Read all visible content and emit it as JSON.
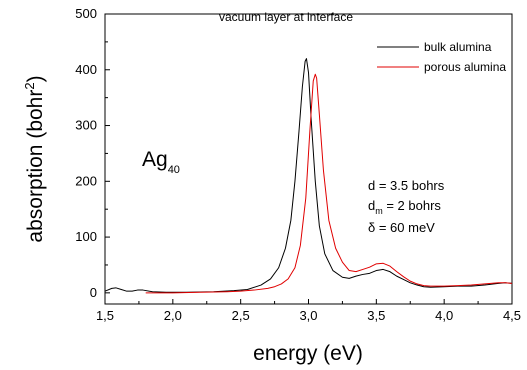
{
  "chart_data": {
    "type": "line",
    "title": "vacuum layer at interface",
    "xlabel": "energy (eV)",
    "ylabel_main": "absorption (bohr",
    "ylabel_sup": "2",
    "ylabel_close": ")",
    "xlim": [
      1.5,
      4.5
    ],
    "ylim": [
      -20,
      500
    ],
    "xticks": [
      1.5,
      2.0,
      2.5,
      3.0,
      3.5,
      4.0,
      4.5
    ],
    "xtick_labels": [
      "1,5",
      "2,0",
      "2,5",
      "3,0",
      "3,5",
      "4,0",
      "4,5"
    ],
    "yticks": [
      0,
      100,
      200,
      300,
      400,
      500
    ],
    "ytick_labels": [
      "0",
      "100",
      "200",
      "300",
      "400",
      "500"
    ],
    "grid": false,
    "legend_position": "top-right",
    "series": [
      {
        "name": "bulk alumina",
        "color": "#000000",
        "x": [
          1.5,
          1.55,
          1.58,
          1.62,
          1.66,
          1.7,
          1.74,
          1.78,
          1.85,
          1.95,
          2.1,
          2.3,
          2.45,
          2.55,
          2.65,
          2.72,
          2.78,
          2.83,
          2.87,
          2.9,
          2.93,
          2.955,
          2.975,
          2.985,
          3.0,
          3.02,
          3.05,
          3.08,
          3.12,
          3.18,
          3.25,
          3.3,
          3.35,
          3.4,
          3.45,
          3.5,
          3.55,
          3.6,
          3.65,
          3.7,
          3.75,
          3.8,
          3.85,
          3.9,
          4.0,
          4.1,
          4.2,
          4.3,
          4.4,
          4.45,
          4.5
        ],
        "y": [
          3,
          8,
          9,
          6,
          3,
          3,
          5,
          5,
          2,
          1,
          1,
          2,
          4,
          6,
          14,
          25,
          45,
          80,
          130,
          200,
          290,
          370,
          415,
          420,
          395,
          310,
          200,
          120,
          70,
          40,
          28,
          26,
          30,
          33,
          35,
          40,
          42,
          38,
          30,
          24,
          18,
          14,
          11,
          10,
          11,
          12,
          12,
          14,
          17,
          18,
          17
        ]
      },
      {
        "name": "porous alumina",
        "color": "#e00000",
        "x": [
          1.5,
          1.6,
          1.7,
          1.8,
          2.0,
          2.2,
          2.4,
          2.5,
          2.6,
          2.7,
          2.75,
          2.8,
          2.85,
          2.9,
          2.94,
          2.98,
          3.01,
          3.035,
          3.05,
          3.06,
          3.08,
          3.11,
          3.15,
          3.2,
          3.25,
          3.3,
          3.35,
          3.4,
          3.45,
          3.5,
          3.55,
          3.6,
          3.65,
          3.7,
          3.75,
          3.8,
          3.85,
          3.9,
          4.0,
          4.1,
          4.2,
          4.3,
          4.4,
          4.45,
          4.5
        ],
        "y": [
          null,
          null,
          null,
          0,
          0,
          1,
          2,
          3,
          5,
          8,
          11,
          16,
          25,
          45,
          85,
          170,
          290,
          380,
          392,
          385,
          320,
          220,
          130,
          80,
          55,
          40,
          38,
          42,
          46,
          52,
          53,
          48,
          38,
          29,
          21,
          16,
          13,
          12,
          12,
          13,
          14,
          16,
          18,
          18,
          17
        ]
      }
    ],
    "annotations": {
      "species_main": "Ag",
      "species_sub": "40",
      "d_line": "d = 3.5 bohrs",
      "dm_prefix": "d",
      "dm_sub": "m",
      "dm_rest": " = 2 bohrs",
      "delta_line": "δ = 60 meV"
    }
  }
}
